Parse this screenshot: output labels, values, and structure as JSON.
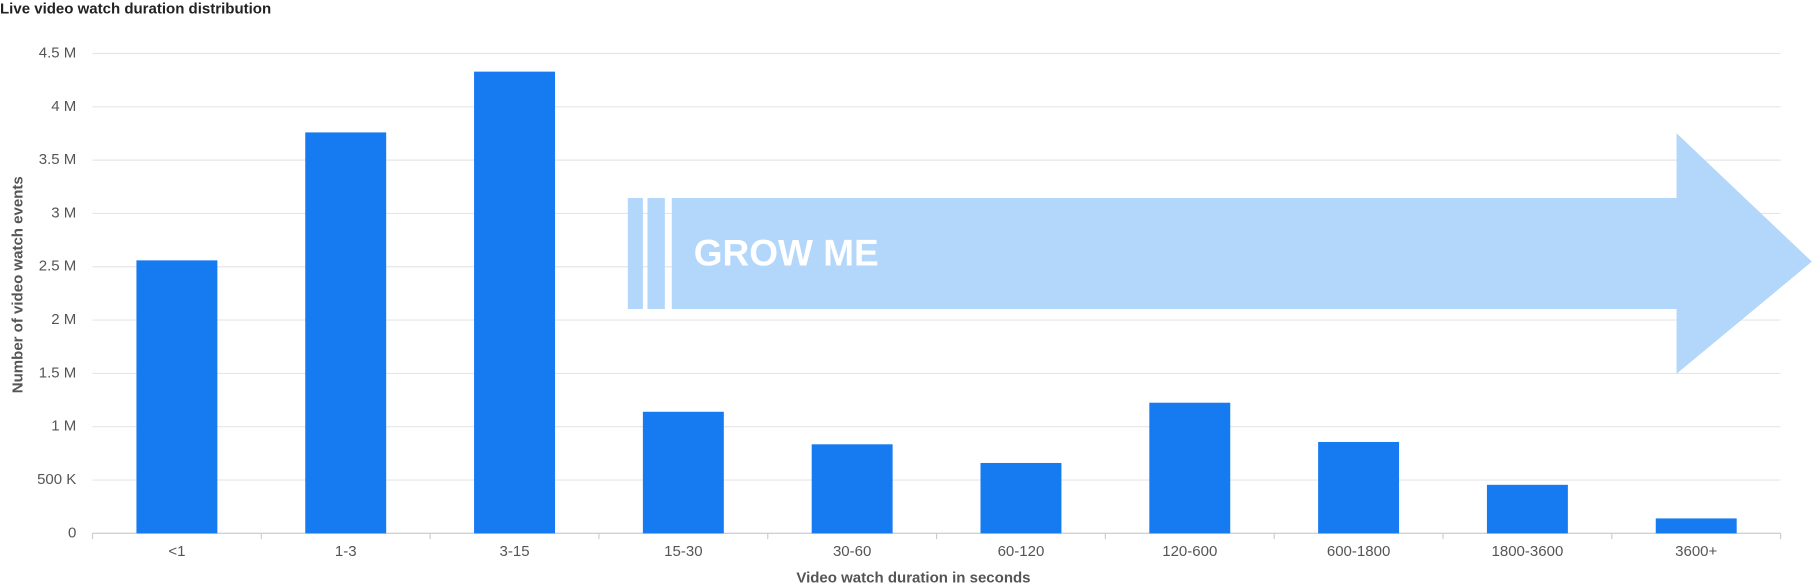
{
  "chart_data": {
    "type": "bar",
    "title": "Live video watch duration distribution",
    "x_label": "Video watch duration in seconds",
    "y_label": "Number of video watch events",
    "categories": [
      "<1",
      "1-3",
      "3-15",
      "15-30",
      "30-60",
      "60-120",
      "120-600",
      "600-1800",
      "1800-3600",
      "3600+"
    ],
    "values": [
      2560000,
      3760000,
      4330000,
      1140000,
      835000,
      660000,
      1225000,
      857000,
      455000,
      140000
    ],
    "color": "#167bf0",
    "ylim": [
      0,
      4500000
    ],
    "yticks": [
      0,
      {
        "value": 500000,
        "label": "500 K"
      },
      {
        "value": 1000000,
        "label": "1 M"
      },
      {
        "value": 1500000,
        "label": "1.5 M"
      },
      {
        "value": 2000000,
        "label": "2 M"
      },
      {
        "value": 2500000,
        "label": "2.5 M"
      },
      {
        "value": 3000000,
        "label": "3 M"
      },
      {
        "value": 3500000,
        "label": "3.5 M"
      },
      {
        "value": 4000000,
        "label": "4 M"
      },
      {
        "value": 4500000,
        "label": "4.5 M"
      }
    ],
    "grid": true,
    "annotations": [
      "GROW ME"
    ]
  }
}
